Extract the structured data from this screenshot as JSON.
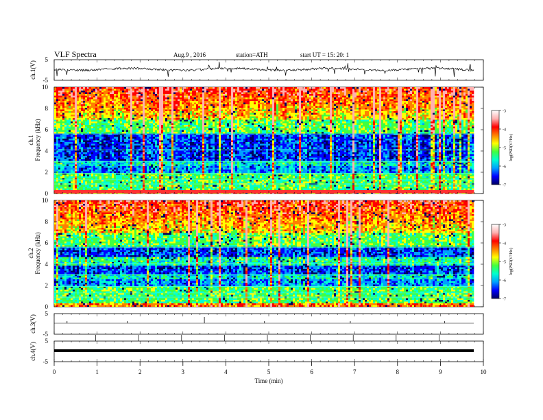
{
  "header": {
    "title": "VLF  Spectra",
    "date": "Aug.9  , 2016",
    "station": "station=ATH",
    "start": "start  UT  =   15: 20: 1"
  },
  "x_axis": {
    "label": "Time  (min)",
    "ticks": [
      "0",
      "1",
      "2",
      "3",
      "4",
      "5",
      "6",
      "7",
      "8",
      "9",
      "10"
    ]
  },
  "panels": {
    "ch1_wave": {
      "ylabel": "ch.1(V)",
      "ticks": [
        "5",
        "-5"
      ]
    },
    "ch1_spec": {
      "ylabel_top": "ch.1",
      "ylabel": "Frequency  (kHz)",
      "ticks": [
        "10",
        "8",
        "6",
        "4",
        "2",
        "0"
      ]
    },
    "ch2_spec": {
      "ylabel_top": "ch.2",
      "ylabel": "Frequency  (kHz)",
      "ticks": [
        "10",
        "8",
        "6",
        "4",
        "2",
        "0"
      ]
    },
    "ch3_wave": {
      "ylabel": "ch.3(V)",
      "ticks": [
        "5",
        "-5"
      ]
    },
    "ch4_wave": {
      "ylabel": "ch.4(V)",
      "ticks": [
        "5",
        "-5"
      ]
    }
  },
  "colorbar": {
    "label": "log(PSD(V²/Hz)",
    "ticks": [
      "-3",
      "-4",
      "-5",
      "-6",
      "-7"
    ],
    "colors": [
      "#000060",
      "#0000ff",
      "#00a0ff",
      "#00ffd0",
      "#40ff40",
      "#ffff00",
      "#ff8000",
      "#ff0000",
      "#ffb0b0",
      "#ffffff"
    ]
  },
  "chart_data": [
    {
      "type": "line",
      "title": "ch.1(V)",
      "xlim": [
        0,
        9.8
      ],
      "ylim": [
        -5,
        5
      ],
      "series": [
        {
          "values": "noisy waveform near 0 V"
        }
      ]
    },
    {
      "type": "heatmap",
      "title": "ch.1",
      "xlabel": "Time  (min)",
      "ylabel": "Frequency  (kHz)",
      "xlim": [
        0,
        9.8
      ],
      "ylim": [
        0,
        10
      ],
      "zlabel": "log(PSD(V²/Hz)",
      "zlim": [
        -7,
        -3
      ]
    },
    {
      "type": "heatmap",
      "title": "ch.2",
      "xlabel": "Time  (min)",
      "ylabel": "Frequency  (kHz)",
      "xlim": [
        0,
        9.8
      ],
      "ylim": [
        0,
        10
      ],
      "zlabel": "log(PSD(V²/Hz)",
      "zlim": [
        -7,
        -3
      ]
    },
    {
      "type": "line",
      "title": "ch.3(V)",
      "xlim": [
        0,
        9.8
      ],
      "ylim": [
        -5,
        5
      ],
      "series": [
        {
          "values": "flat near 0 V with sparse spikes"
        }
      ]
    },
    {
      "type": "line",
      "title": "ch.4(V)",
      "xlim": [
        0,
        9.8
      ],
      "ylim": [
        -5,
        5
      ],
      "series": [
        {
          "values": "thick flat line near 0 V"
        }
      ]
    }
  ]
}
